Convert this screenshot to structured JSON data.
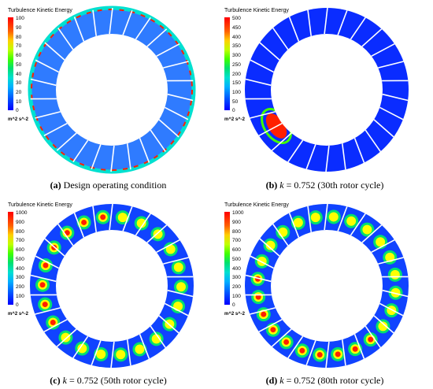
{
  "legend_title": "Turbulence Kinetic Energy",
  "unit_label": "m^2 s^-2",
  "colors": {
    "scale": [
      "#0000ff",
      "#0050ff",
      "#00b0ff",
      "#00e0d0",
      "#00e070",
      "#40ff00",
      "#c0ff00",
      "#ffff00",
      "#ffa000",
      "#ff4000",
      "#ff0000"
    ],
    "passage": "#1a3cff",
    "hub": "#ffffff",
    "blade": "#ffffff"
  },
  "panels": [
    {
      "letter": "(a)",
      "k_text": "",
      "k_value": "",
      "desc": "Design operating condition",
      "ticks": [
        "100",
        "90",
        "80",
        "70",
        "60",
        "50",
        "40",
        "30",
        "20",
        "10",
        "0"
      ],
      "base_fill": "#2f7bff"
    },
    {
      "letter": "(b)",
      "k_text": "k",
      "k_value": " = 0.752",
      "desc": "(30th rotor cycle)",
      "ticks": [
        "500",
        "450",
        "400",
        "350",
        "300",
        "250",
        "200",
        "150",
        "100",
        "50",
        "0"
      ],
      "base_fill": "#0a2cff"
    },
    {
      "letter": "(c)",
      "k_text": "k",
      "k_value": " = 0.752",
      "desc": "(50th rotor cycle)",
      "ticks": [
        "1000",
        "900",
        "800",
        "700",
        "600",
        "500",
        "400",
        "300",
        "200",
        "100",
        "0"
      ],
      "base_fill": "#1043ff"
    },
    {
      "letter": "(d)",
      "k_text": "k",
      "k_value": " = 0.752",
      "desc": "(80th rotor cycle)",
      "ticks": [
        "1000",
        "900",
        "800",
        "700",
        "600",
        "500",
        "400",
        "300",
        "200",
        "100",
        "0"
      ],
      "base_fill": "#1043ff"
    }
  ]
}
